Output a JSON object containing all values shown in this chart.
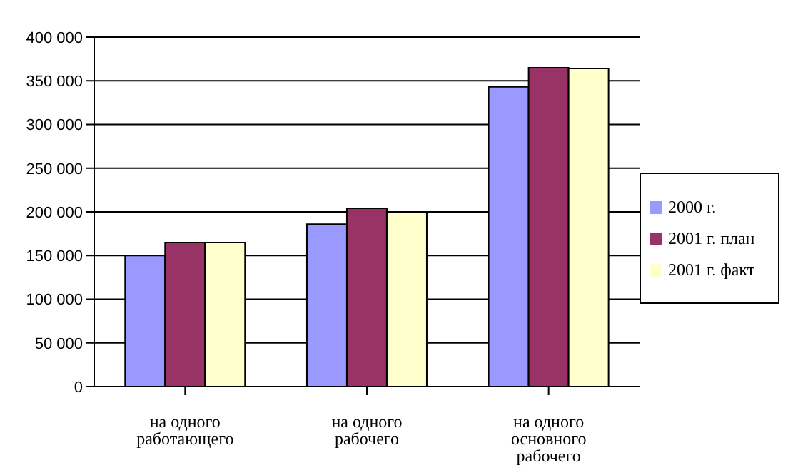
{
  "chart_data": {
    "type": "bar",
    "categories": [
      "на одного работающего",
      "на одного рабочего",
      "на одного основного рабочего"
    ],
    "series": [
      {
        "name": "2000 г.",
        "color": "#9999ff",
        "values": [
          150000,
          186000,
          343000
        ]
      },
      {
        "name": "2001 г. план",
        "color": "#993366",
        "values": [
          165000,
          204000,
          365000
        ]
      },
      {
        "name": "2001 г. факт",
        "color": "#ffffcc",
        "values": [
          165000,
          200000,
          364000
        ]
      }
    ],
    "ylim": [
      0,
      400000
    ],
    "yticks": [
      0,
      50000,
      100000,
      150000,
      200000,
      250000,
      300000,
      350000,
      400000
    ],
    "grid": "y",
    "legend": "right"
  }
}
